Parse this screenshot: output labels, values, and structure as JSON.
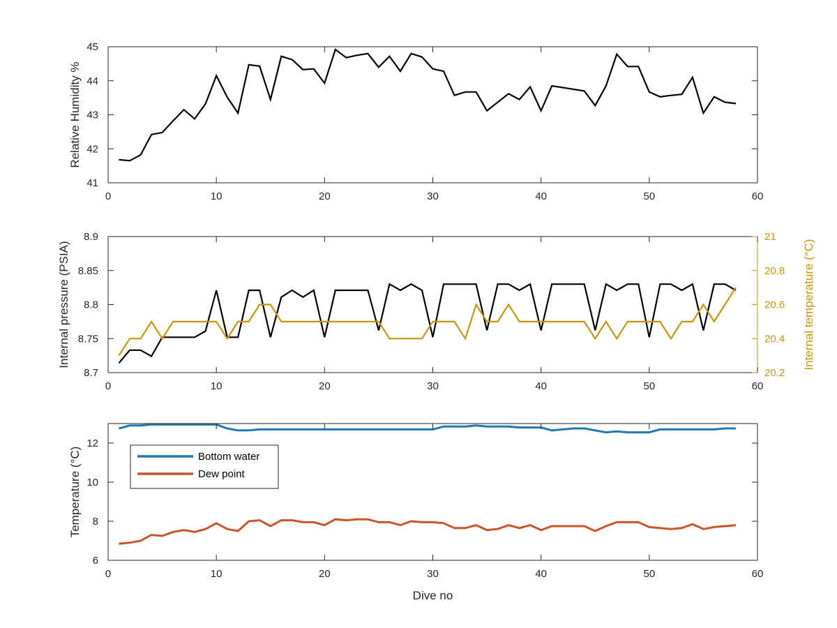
{
  "chart_data": [
    {
      "type": "line",
      "xlabel": "",
      "ylabel": "Relative Humidity %",
      "xlim": [
        0,
        60
      ],
      "ylim": [
        41,
        45
      ],
      "xticks": [
        "0",
        "10",
        "20",
        "30",
        "40",
        "50",
        "60"
      ],
      "yticks": [
        "41",
        "42",
        "43",
        "44",
        "45"
      ],
      "grid": false,
      "series": [
        {
          "color": "#000000",
          "x": [
            1,
            2,
            3,
            4,
            5,
            6,
            7,
            8,
            9,
            10,
            11,
            12,
            13,
            14,
            15,
            16,
            17,
            18,
            19,
            20,
            21,
            22,
            23,
            24,
            25,
            26,
            27,
            28,
            29,
            30,
            31,
            32,
            33,
            34,
            35,
            36,
            37,
            38,
            39,
            40,
            41,
            42,
            43,
            44,
            45,
            46,
            47,
            48,
            49,
            50,
            51,
            52,
            53,
            54,
            55,
            56,
            57,
            58
          ],
          "values": [
            41.68,
            41.65,
            41.82,
            42.42,
            42.48,
            42.82,
            43.15,
            42.88,
            43.32,
            44.15,
            43.52,
            43.05,
            44.47,
            44.43,
            43.45,
            44.72,
            44.62,
            44.33,
            44.35,
            43.93,
            44.92,
            44.68,
            44.75,
            44.8,
            44.4,
            44.72,
            44.28,
            44.8,
            44.7,
            44.35,
            44.28,
            43.57,
            43.67,
            43.67,
            43.12,
            43.37,
            43.62,
            43.45,
            43.82,
            43.12,
            43.85,
            43.8,
            43.75,
            43.7,
            43.27,
            43.85,
            44.78,
            44.42,
            44.42,
            43.67,
            43.53,
            43.57,
            43.6,
            44.1,
            43.05,
            43.53,
            43.37,
            43.33
          ]
        }
      ]
    },
    {
      "type": "line",
      "xlabel": "",
      "ylabel": "Internal pressure (PSIA)",
      "ylabel_right": "Internal temperature (°C)",
      "xlim": [
        0,
        60
      ],
      "ylim": [
        8.7,
        8.9
      ],
      "ylim_right": [
        20.2,
        21
      ],
      "xticks": [
        "0",
        "10",
        "20",
        "30",
        "40",
        "50",
        "60"
      ],
      "yticks": [
        "8.7",
        "8.75",
        "8.8",
        "8.85",
        "8.9"
      ],
      "yticks_right": [
        "20.2",
        "20.4",
        "20.6",
        "20.8",
        "21"
      ],
      "grid": false,
      "series": [
        {
          "axis": "left",
          "color": "#000000",
          "x": [
            1,
            2,
            3,
            4,
            5,
            6,
            7,
            8,
            9,
            10,
            11,
            12,
            13,
            14,
            15,
            16,
            17,
            18,
            19,
            20,
            21,
            22,
            23,
            24,
            25,
            26,
            27,
            28,
            29,
            30,
            31,
            32,
            33,
            34,
            35,
            36,
            37,
            38,
            39,
            40,
            41,
            42,
            43,
            44,
            45,
            46,
            47,
            48,
            49,
            50,
            51,
            52,
            53,
            54,
            55,
            56,
            57,
            58
          ],
          "values": [
            8.714,
            8.733,
            8.733,
            8.724,
            8.752,
            8.752,
            8.752,
            8.752,
            8.761,
            8.821,
            8.752,
            8.752,
            8.821,
            8.821,
            8.752,
            8.811,
            8.821,
            8.811,
            8.821,
            8.752,
            8.821,
            8.821,
            8.821,
            8.821,
            8.762,
            8.83,
            8.821,
            8.83,
            8.821,
            8.752,
            8.83,
            8.83,
            8.83,
            8.83,
            8.762,
            8.83,
            8.83,
            8.821,
            8.83,
            8.762,
            8.83,
            8.83,
            8.83,
            8.83,
            8.762,
            8.83,
            8.821,
            8.83,
            8.83,
            8.752,
            8.83,
            8.83,
            8.821,
            8.83,
            8.762,
            8.83,
            8.83,
            8.821
          ]
        },
        {
          "axis": "right",
          "color": "#C8960A",
          "x": [
            1,
            2,
            3,
            4,
            5,
            6,
            7,
            8,
            9,
            10,
            11,
            12,
            13,
            14,
            15,
            16,
            17,
            18,
            19,
            20,
            21,
            22,
            23,
            24,
            25,
            26,
            27,
            28,
            29,
            30,
            31,
            32,
            33,
            34,
            35,
            36,
            37,
            38,
            39,
            40,
            41,
            42,
            43,
            44,
            45,
            46,
            47,
            48,
            49,
            50,
            51,
            52,
            53,
            54,
            55,
            56,
            57,
            58
          ],
          "values": [
            20.3,
            20.4,
            20.4,
            20.5,
            20.4,
            20.5,
            20.5,
            20.5,
            20.5,
            20.5,
            20.4,
            20.5,
            20.5,
            20.6,
            20.6,
            20.5,
            20.5,
            20.5,
            20.5,
            20.5,
            20.5,
            20.5,
            20.5,
            20.5,
            20.5,
            20.4,
            20.4,
            20.4,
            20.4,
            20.5,
            20.5,
            20.5,
            20.4,
            20.6,
            20.5,
            20.5,
            20.6,
            20.5,
            20.5,
            20.5,
            20.5,
            20.5,
            20.5,
            20.5,
            20.4,
            20.5,
            20.4,
            20.5,
            20.5,
            20.5,
            20.5,
            20.4,
            20.5,
            20.5,
            20.6,
            20.5,
            20.6,
            20.7
          ]
        }
      ]
    },
    {
      "type": "line",
      "xlabel": "Dive no",
      "ylabel": "Temperature (°C)",
      "xlim": [
        0,
        60
      ],
      "ylim": [
        6,
        13
      ],
      "xticks": [
        "0",
        "10",
        "20",
        "30",
        "40",
        "50",
        "60"
      ],
      "yticks": [
        "6",
        "8",
        "10",
        "12"
      ],
      "grid": false,
      "legend_position": "top-left",
      "series": [
        {
          "name": "Bottom water",
          "color": "#1F77B4",
          "x": [
            1,
            2,
            3,
            4,
            5,
            6,
            7,
            8,
            9,
            10,
            11,
            12,
            13,
            14,
            15,
            16,
            17,
            18,
            19,
            20,
            21,
            22,
            23,
            24,
            25,
            26,
            27,
            28,
            29,
            30,
            31,
            32,
            33,
            34,
            35,
            36,
            37,
            38,
            39,
            40,
            41,
            42,
            43,
            44,
            45,
            46,
            47,
            48,
            49,
            50,
            51,
            52,
            53,
            54,
            55,
            56,
            57,
            58
          ],
          "values": [
            12.75,
            12.9,
            12.9,
            12.95,
            12.95,
            12.95,
            12.95,
            12.95,
            12.95,
            12.95,
            12.75,
            12.65,
            12.65,
            12.7,
            12.7,
            12.7,
            12.7,
            12.7,
            12.7,
            12.7,
            12.7,
            12.7,
            12.7,
            12.7,
            12.7,
            12.7,
            12.7,
            12.7,
            12.7,
            12.7,
            12.85,
            12.85,
            12.85,
            12.9,
            12.85,
            12.85,
            12.85,
            12.8,
            12.8,
            12.8,
            12.65,
            12.7,
            12.75,
            12.75,
            12.65,
            12.55,
            12.6,
            12.55,
            12.55,
            12.55,
            12.7,
            12.7,
            12.7,
            12.7,
            12.7,
            12.7,
            12.75,
            12.75
          ]
        },
        {
          "name": "Dew point",
          "color": "#C8562A",
          "x": [
            1,
            2,
            3,
            4,
            5,
            6,
            7,
            8,
            9,
            10,
            11,
            12,
            13,
            14,
            15,
            16,
            17,
            18,
            19,
            20,
            21,
            22,
            23,
            24,
            25,
            26,
            27,
            28,
            29,
            30,
            31,
            32,
            33,
            34,
            35,
            36,
            37,
            38,
            39,
            40,
            41,
            42,
            43,
            44,
            45,
            46,
            47,
            48,
            49,
            50,
            51,
            52,
            53,
            54,
            55,
            56,
            57,
            58
          ],
          "values": [
            6.85,
            6.9,
            7.0,
            7.3,
            7.25,
            7.45,
            7.55,
            7.45,
            7.6,
            7.9,
            7.6,
            7.5,
            8.0,
            8.05,
            7.75,
            8.05,
            8.05,
            7.95,
            7.95,
            7.8,
            8.1,
            8.05,
            8.1,
            8.1,
            7.95,
            7.95,
            7.8,
            8.0,
            7.95,
            7.95,
            7.9,
            7.65,
            7.65,
            7.8,
            7.55,
            7.6,
            7.8,
            7.65,
            7.8,
            7.55,
            7.75,
            7.75,
            7.75,
            7.75,
            7.5,
            7.75,
            7.95,
            7.95,
            7.95,
            7.7,
            7.65,
            7.6,
            7.65,
            7.85,
            7.6,
            7.7,
            7.75,
            7.8
          ]
        }
      ]
    }
  ]
}
